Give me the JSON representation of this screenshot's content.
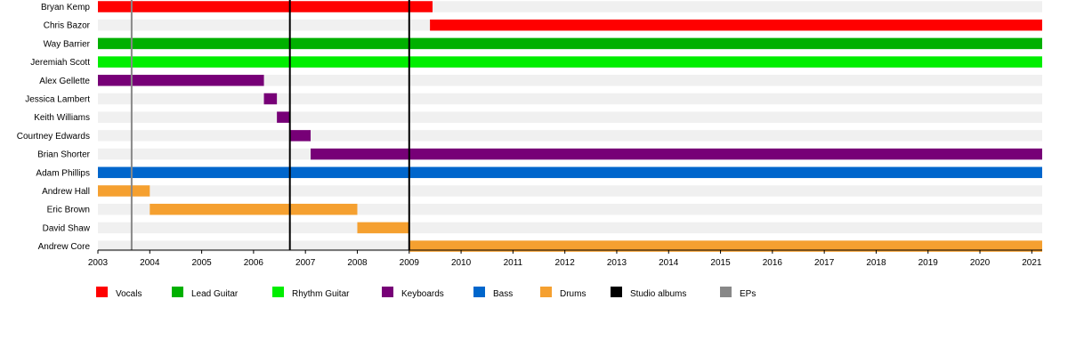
{
  "chart_data": {
    "type": "timeline",
    "xlim": [
      2003,
      2021.2
    ],
    "x_ticks": [
      "2003",
      "2004",
      "2005",
      "2006",
      "2007",
      "2008",
      "2009",
      "2010",
      "2011",
      "2012",
      "2013",
      "2014",
      "2015",
      "2016",
      "2017",
      "2018",
      "2019",
      "2020",
      "2021"
    ],
    "roles": [
      {
        "key": "vocals",
        "label": "Vocals",
        "color": "#ff0000"
      },
      {
        "key": "lead",
        "label": "Lead Guitar",
        "color": "#00b000"
      },
      {
        "key": "rhythm",
        "label": "Rhythm Guitar",
        "color": "#00ee00"
      },
      {
        "key": "keys",
        "label": "Keyboards",
        "color": "#770077"
      },
      {
        "key": "bass",
        "label": "Bass",
        "color": "#0066cc"
      },
      {
        "key": "drums",
        "label": "Drums",
        "color": "#f5a030"
      },
      {
        "key": "studio",
        "label": "Studio albums",
        "color": "#000000"
      },
      {
        "key": "ep",
        "label": "EPs",
        "color": "#888888"
      }
    ],
    "members": [
      {
        "name": "Bryan Kemp",
        "role": "vocals",
        "start": 2003,
        "end": 2009.45
      },
      {
        "name": "Chris Bazor",
        "role": "vocals",
        "start": 2009.4,
        "end": 2021.2
      },
      {
        "name": "Way Barrier",
        "role": "lead",
        "start": 2003,
        "end": 2021.2
      },
      {
        "name": "Jeremiah Scott",
        "role": "rhythm",
        "start": 2003,
        "end": 2021.2
      },
      {
        "name": "Alex Gellette",
        "role": "keys",
        "start": 2003,
        "end": 2006.2
      },
      {
        "name": "Jessica Lambert",
        "role": "keys",
        "start": 2006.2,
        "end": 2006.45
      },
      {
        "name": "Keith Williams",
        "role": "keys",
        "start": 2006.45,
        "end": 2006.7
      },
      {
        "name": "Courtney Edwards",
        "role": "keys",
        "start": 2006.7,
        "end": 2007.1
      },
      {
        "name": "Brian Shorter",
        "role": "keys",
        "start": 2007.1,
        "end": 2021.2
      },
      {
        "name": "Adam Phillips",
        "role": "bass",
        "start": 2003,
        "end": 2021.2
      },
      {
        "name": "Andrew Hall",
        "role": "drums",
        "start": 2003,
        "end": 2004.0
      },
      {
        "name": "Eric Brown",
        "role": "drums",
        "start": 2004.0,
        "end": 2008.0
      },
      {
        "name": "David Shaw",
        "role": "drums",
        "start": 2008.0,
        "end": 2009.0
      },
      {
        "name": "Andrew Core",
        "role": "drums",
        "start": 2009.0,
        "end": 2021.2
      }
    ],
    "events": [
      {
        "type": "ep",
        "x": 2003.65
      },
      {
        "type": "studio",
        "x": 2006.7
      },
      {
        "type": "studio",
        "x": 2009.0
      }
    ]
  }
}
